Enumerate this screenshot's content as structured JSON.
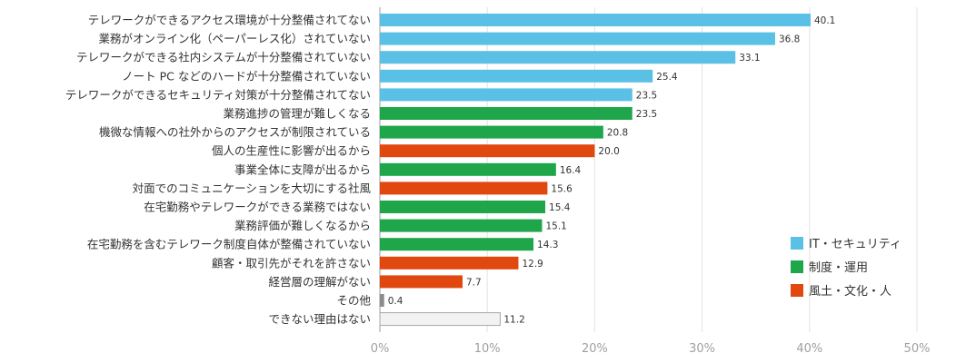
{
  "chart_data": {
    "type": "bar",
    "orientation": "horizontal",
    "xlim": [
      0,
      50
    ],
    "ticks": [
      0,
      10,
      20,
      30,
      40,
      50
    ],
    "tick_labels": [
      "0%",
      "10%",
      "20%",
      "30%",
      "40%",
      "50%"
    ],
    "grid": true,
    "legend_placement": "right",
    "legend": [
      {
        "key": "it",
        "label": "IT・セキュリティ",
        "color": "#5bc0e6"
      },
      {
        "key": "system",
        "label": "制度・運用",
        "color": "#1fa64a"
      },
      {
        "key": "culture",
        "label": "風土・文化・人",
        "color": "#e0480f"
      }
    ],
    "group_colors": {
      "it": "#5bc0e6",
      "system": "#1fa64a",
      "culture": "#e0480f",
      "other": "#8c8c8c",
      "none": "#f2f2f2"
    },
    "bars": [
      {
        "label": "テレワークができるアクセス環境が十分整備されてない",
        "value": 40.1,
        "value_label": "40.1",
        "group": "it"
      },
      {
        "label": "業務がオンライン化（ペーパーレス化）されていない",
        "value": 36.8,
        "value_label": "36.8",
        "group": "it"
      },
      {
        "label": "テレワークができる社内システムが十分整備されていない",
        "value": 33.1,
        "value_label": "33.1",
        "group": "it"
      },
      {
        "label": "ノート PC などのハードが十分整備されていない",
        "value": 25.4,
        "value_label": "25.4",
        "group": "it"
      },
      {
        "label": "テレワークができるセキュリティ対策が十分整備されてない",
        "value": 23.5,
        "value_label": "23.5",
        "group": "it"
      },
      {
        "label": "業務進捗の管理が難しくなる",
        "value": 23.5,
        "value_label": "23.5",
        "group": "system"
      },
      {
        "label": "機微な情報への社外からのアクセスが制限されている",
        "value": 20.8,
        "value_label": "20.8",
        "group": "system"
      },
      {
        "label": "個人の生産性に影響が出るから",
        "value": 20.0,
        "value_label": "20.0",
        "group": "culture"
      },
      {
        "label": "事業全体に支障が出るから",
        "value": 16.4,
        "value_label": "16.4",
        "group": "system"
      },
      {
        "label": "対面でのコミュニケーションを大切にする社風",
        "value": 15.6,
        "value_label": "15.6",
        "group": "culture"
      },
      {
        "label": "在宅勤務やテレワークができる業務ではない",
        "value": 15.4,
        "value_label": "15.4",
        "group": "system"
      },
      {
        "label": "業務評価が難しくなるから",
        "value": 15.1,
        "value_label": "15.1",
        "group": "system"
      },
      {
        "label": "在宅勤務を含むテレワーク制度自体が整備されていない",
        "value": 14.3,
        "value_label": "14.3",
        "group": "system"
      },
      {
        "label": "顧客・取引先がそれを許さない",
        "value": 12.9,
        "value_label": "12.9",
        "group": "culture"
      },
      {
        "label": "経営層の理解がない",
        "value": 7.7,
        "value_label": "7.7",
        "group": "culture"
      },
      {
        "label": "その他",
        "value": 0.4,
        "value_label": "0.4",
        "group": "other"
      },
      {
        "label": "できない理由はない",
        "value": 11.2,
        "value_label": "11.2",
        "group": "none"
      }
    ]
  }
}
